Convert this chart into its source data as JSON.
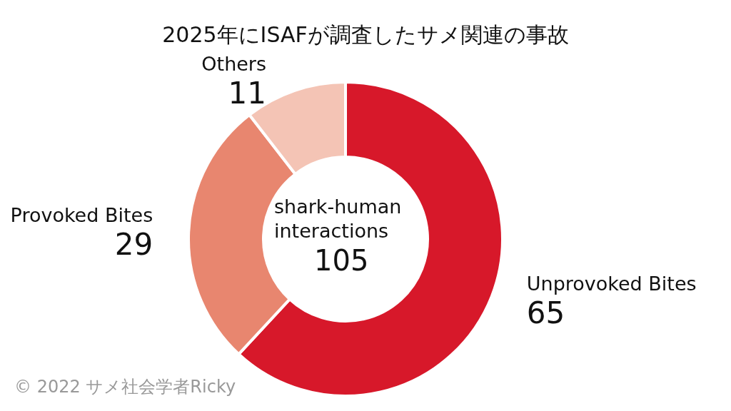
{
  "chart_data": {
    "type": "donut",
    "title": "2025年にISAFが調査したサメ関連の事故",
    "categories": [
      "Unprovoked Bites",
      "Provoked Bites",
      "Others"
    ],
    "values": [
      65,
      29,
      11
    ],
    "colors": [
      "#d7182a",
      "#e8866f",
      "#f4c4b5"
    ],
    "data_labels": true,
    "legend": false,
    "annotations": [
      "shark-human interactions",
      "105",
      "© 2022 サメ社会学者Ricky"
    ]
  }
}
